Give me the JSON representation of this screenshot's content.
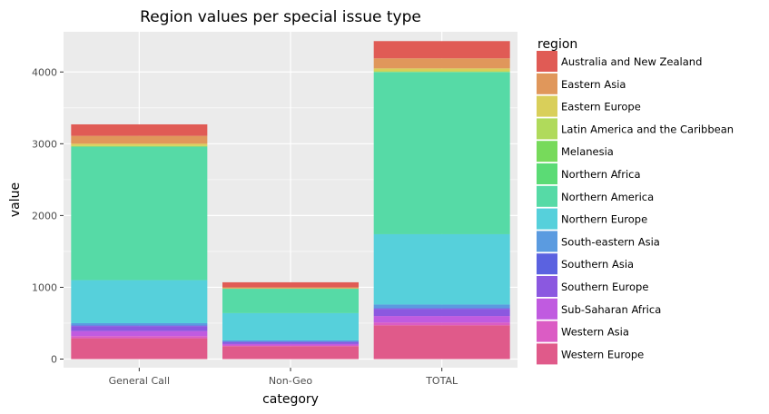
{
  "chart_data": {
    "type": "bar",
    "stacked": true,
    "title": "Region values per special issue type",
    "xlabel": "category",
    "ylabel": "value",
    "ylim": [
      -120,
      4560
    ],
    "yticks": [
      0,
      1000,
      2000,
      3000,
      4000
    ],
    "grid": true,
    "legend_title": "region",
    "legend_position": "right",
    "categories": [
      "General Call",
      "Non-Geo",
      "TOTAL"
    ],
    "series": [
      {
        "name": "Western Europe",
        "color": "#e05a8a",
        "values": [
          290,
          180,
          470
        ]
      },
      {
        "name": "Western Asia",
        "color": "#db5cc4",
        "values": [
          30,
          10,
          40
        ]
      },
      {
        "name": "Sub-Saharan Africa",
        "color": "#c05be0",
        "values": [
          70,
          20,
          90
        ]
      },
      {
        "name": "Southern Europe",
        "color": "#8b58e0",
        "values": [
          70,
          30,
          100
        ]
      },
      {
        "name": "Southern Asia",
        "color": "#5b62e0",
        "values": [
          10,
          0,
          10
        ]
      },
      {
        "name": "South-eastern Asia",
        "color": "#5b9be0",
        "values": [
          30,
          20,
          50
        ]
      },
      {
        "name": "Northern Europe",
        "color": "#56d0db",
        "values": [
          600,
          380,
          980
        ]
      },
      {
        "name": "Northern America",
        "color": "#56daa6",
        "values": [
          1860,
          340,
          2260
        ]
      },
      {
        "name": "Northern Africa",
        "color": "#5bdb75",
        "values": [
          0,
          0,
          0
        ]
      },
      {
        "name": "Melanesia",
        "color": "#77da5b",
        "values": [
          0,
          0,
          0
        ]
      },
      {
        "name": "Latin America and the Caribbean",
        "color": "#b0da5b",
        "values": [
          10,
          0,
          10
        ]
      },
      {
        "name": "Eastern Europe",
        "color": "#d9cf5a",
        "values": [
          30,
          5,
          40
        ]
      },
      {
        "name": "Eastern Asia",
        "color": "#e0975b",
        "values": [
          110,
          15,
          140
        ]
      },
      {
        "name": "Australia and New Zealand",
        "color": "#e05b55",
        "values": [
          160,
          70,
          240
        ]
      }
    ],
    "legend_order": [
      "Australia and New Zealand",
      "Eastern Asia",
      "Eastern Europe",
      "Latin America and the Caribbean",
      "Melanesia",
      "Northern Africa",
      "Northern America",
      "Northern Europe",
      "South-eastern Asia",
      "Southern Asia",
      "Southern Europe",
      "Sub-Saharan Africa",
      "Western Asia",
      "Western Europe"
    ],
    "panel_background": "#ebebeb",
    "grid_color": "#ffffff"
  }
}
